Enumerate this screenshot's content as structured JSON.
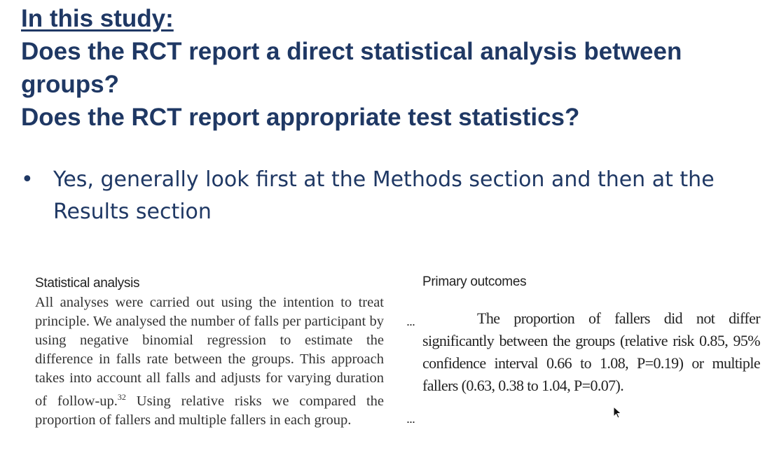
{
  "heading": {
    "label": "In this study:",
    "question_1_line_1": "Does the RCT report a direct statistical analysis between",
    "question_1_line_2": "groups?",
    "question_2": "Does the RCT report appropriate test statistics?"
  },
  "bullet": {
    "text": "Yes, generally look first at the Methods section and then at the Results section"
  },
  "statistical_analysis": {
    "title": "Statistical analysis",
    "body_before_ref": "All analyses were carried out using the intention to treat principle. We analysed the number of falls per participant by using negative binomial regression to estimate the difference in falls rate between the groups. This approach takes into account all falls and adjusts for varying duration of follow-up.",
    "reference": "32",
    "body_after_ref": " Using relative risks we compared the proportion of fallers and multiple fallers in each group."
  },
  "ellipses": {
    "top": "...",
    "bottom": "..."
  },
  "primary_outcomes": {
    "title": "Primary outcomes",
    "body": "The proportion of fallers did not differ significantly between the groups (relative risk 0.85, 95% confidence interval 0.66 to 1.08, P=0.19) or multiple fallers (0.63, 0.38 to 1.04, P=0.07)."
  },
  "icons": {
    "bullet": "bullet-dot-icon",
    "cursor": "mouse-pointer-icon"
  },
  "colors": {
    "heading": "#1f3864",
    "excerpt_text": "#333333"
  }
}
